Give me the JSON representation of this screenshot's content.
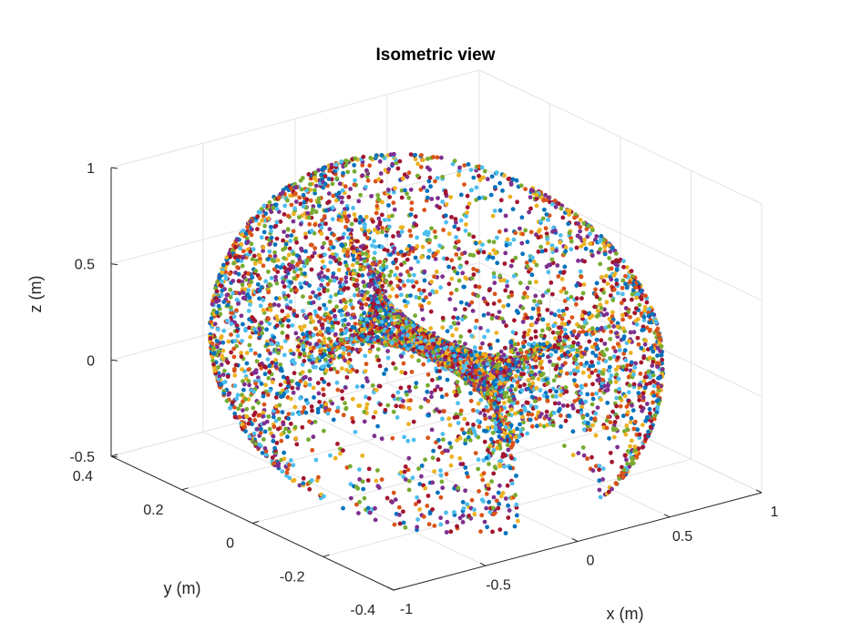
{
  "chart_data": {
    "type": "scatter",
    "projection": "3d-isometric",
    "title": "Isometric view",
    "xlabel": "x (m)",
    "ylabel": "y (m)",
    "zlabel": "z (m)",
    "xlim": [
      -1,
      1
    ],
    "ylim": [
      -0.4,
      0.4
    ],
    "zlim": [
      -0.5,
      1
    ],
    "x_ticks": [
      "-1",
      "-0.5",
      "0",
      "0.5",
      "1"
    ],
    "y_ticks": [
      "-0.4",
      "-0.2",
      "0",
      "0.2",
      "0.4"
    ],
    "z_ticks": [
      "-0.5",
      "0",
      "0.5",
      "1"
    ],
    "grid": true,
    "legend": "none",
    "point_shape": "partial torus (cut open at bottom front)",
    "approx_point_count": 6000,
    "palette": [
      "#0072bd",
      "#d95319",
      "#edb120",
      "#7e2f8e",
      "#77ac30",
      "#4dbeee",
      "#a2142f"
    ],
    "surface": {
      "major_radius_m": 0.45,
      "tube_radius_m": 0.4,
      "y_half_width_m": 0.35,
      "z_center_m": 0.15,
      "x_range_m": [
        -0.85,
        0.85
      ],
      "z_range_m": [
        -0.5,
        0.95
      ]
    }
  }
}
